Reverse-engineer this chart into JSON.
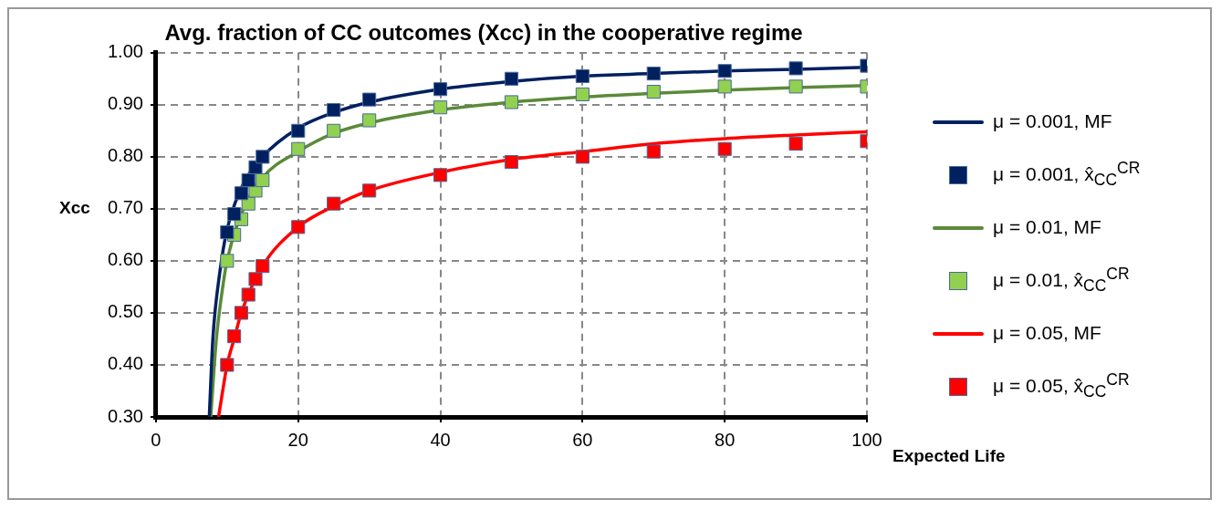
{
  "chart_data": {
    "type": "scatter",
    "title": "Avg. fraction of CC outcomes (Xcc) in the cooperative regime",
    "xlabel": "Expected Life",
    "ylabel": "Xcc",
    "xlim": [
      0,
      100
    ],
    "xticks": [
      0,
      20,
      40,
      60,
      80,
      100
    ],
    "ylim": [
      0.3,
      1.0
    ],
    "yticks": [
      {
        "value": 0.3,
        "label": "0.30"
      },
      {
        "value": 0.4,
        "label": "0.40"
      },
      {
        "value": 0.5,
        "label": "0.50"
      },
      {
        "value": 0.6,
        "label": "0.60"
      },
      {
        "value": 0.7,
        "label": "0.70"
      },
      {
        "value": 0.8,
        "label": "0.80"
      },
      {
        "value": 0.9,
        "label": "0.90"
      },
      {
        "value": 1.0,
        "label": "1.00"
      }
    ],
    "grid": true,
    "legend": "right",
    "series": [
      {
        "name": "μ = 0.001, MF",
        "type": "line",
        "color": "#002060",
        "marker": "none",
        "line_style": "solid",
        "x": [
          7.5,
          8,
          9,
          10,
          12,
          15,
          20,
          25,
          30,
          40,
          50,
          60,
          70,
          80,
          90,
          100
        ],
        "values": [
          0.3,
          0.45,
          0.58,
          0.66,
          0.74,
          0.8,
          0.855,
          0.885,
          0.905,
          0.93,
          0.945,
          0.955,
          0.96,
          0.965,
          0.968,
          0.972
        ]
      },
      {
        "name": "μ = 0.001, x̂$_{CC}$$^{CR}$",
        "type": "scatter",
        "color": "#002060",
        "marker": "square",
        "x": [
          10,
          11,
          12,
          13,
          14,
          15,
          20,
          25,
          30,
          40,
          50,
          60,
          70,
          80,
          90,
          100
        ],
        "values": [
          0.655,
          0.69,
          0.73,
          0.755,
          0.78,
          0.8,
          0.85,
          0.89,
          0.91,
          0.93,
          0.95,
          0.955,
          0.96,
          0.965,
          0.97,
          0.975
        ]
      },
      {
        "name": "μ = 0.01, MF",
        "type": "line",
        "color": "#5b8a3a",
        "marker": "none",
        "line_style": "solid",
        "x": [
          7.7,
          8.5,
          9.5,
          10,
          12,
          15,
          20,
          25,
          30,
          40,
          50,
          60,
          70,
          80,
          90,
          100
        ],
        "values": [
          0.3,
          0.45,
          0.56,
          0.6,
          0.69,
          0.76,
          0.81,
          0.845,
          0.865,
          0.89,
          0.905,
          0.915,
          0.922,
          0.928,
          0.933,
          0.937
        ]
      },
      {
        "name": "μ = 0.01, x̂$_{CC}$$^{CR}$",
        "type": "scatter",
        "color": "#92d050",
        "marker": "square",
        "x": [
          10,
          11,
          12,
          13,
          14,
          15,
          20,
          25,
          30,
          40,
          50,
          60,
          70,
          80,
          90,
          100
        ],
        "values": [
          0.6,
          0.65,
          0.68,
          0.71,
          0.735,
          0.755,
          0.815,
          0.85,
          0.87,
          0.895,
          0.905,
          0.92,
          0.925,
          0.935,
          0.935,
          0.935
        ]
      },
      {
        "name": "μ = 0.05, MF",
        "type": "line",
        "color": "#ff0000",
        "marker": "none",
        "line_style": "solid",
        "x": [
          8.8,
          9.5,
          10,
          11,
          12,
          15,
          20,
          25,
          30,
          40,
          50,
          60,
          70,
          80,
          90,
          100
        ],
        "values": [
          0.3,
          0.36,
          0.4,
          0.45,
          0.5,
          0.59,
          0.665,
          0.705,
          0.735,
          0.77,
          0.795,
          0.81,
          0.825,
          0.835,
          0.842,
          0.848
        ]
      },
      {
        "name": "μ = 0.05, x̂$_{CC}$$^{CR}$",
        "type": "scatter",
        "color": "#ff0000",
        "marker": "square",
        "x": [
          10,
          11,
          12,
          13,
          14,
          15,
          20,
          25,
          30,
          40,
          50,
          60,
          70,
          80,
          90,
          100
        ],
        "values": [
          0.4,
          0.455,
          0.5,
          0.535,
          0.565,
          0.59,
          0.665,
          0.71,
          0.735,
          0.765,
          0.79,
          0.8,
          0.81,
          0.815,
          0.825,
          0.83
        ]
      }
    ]
  }
}
